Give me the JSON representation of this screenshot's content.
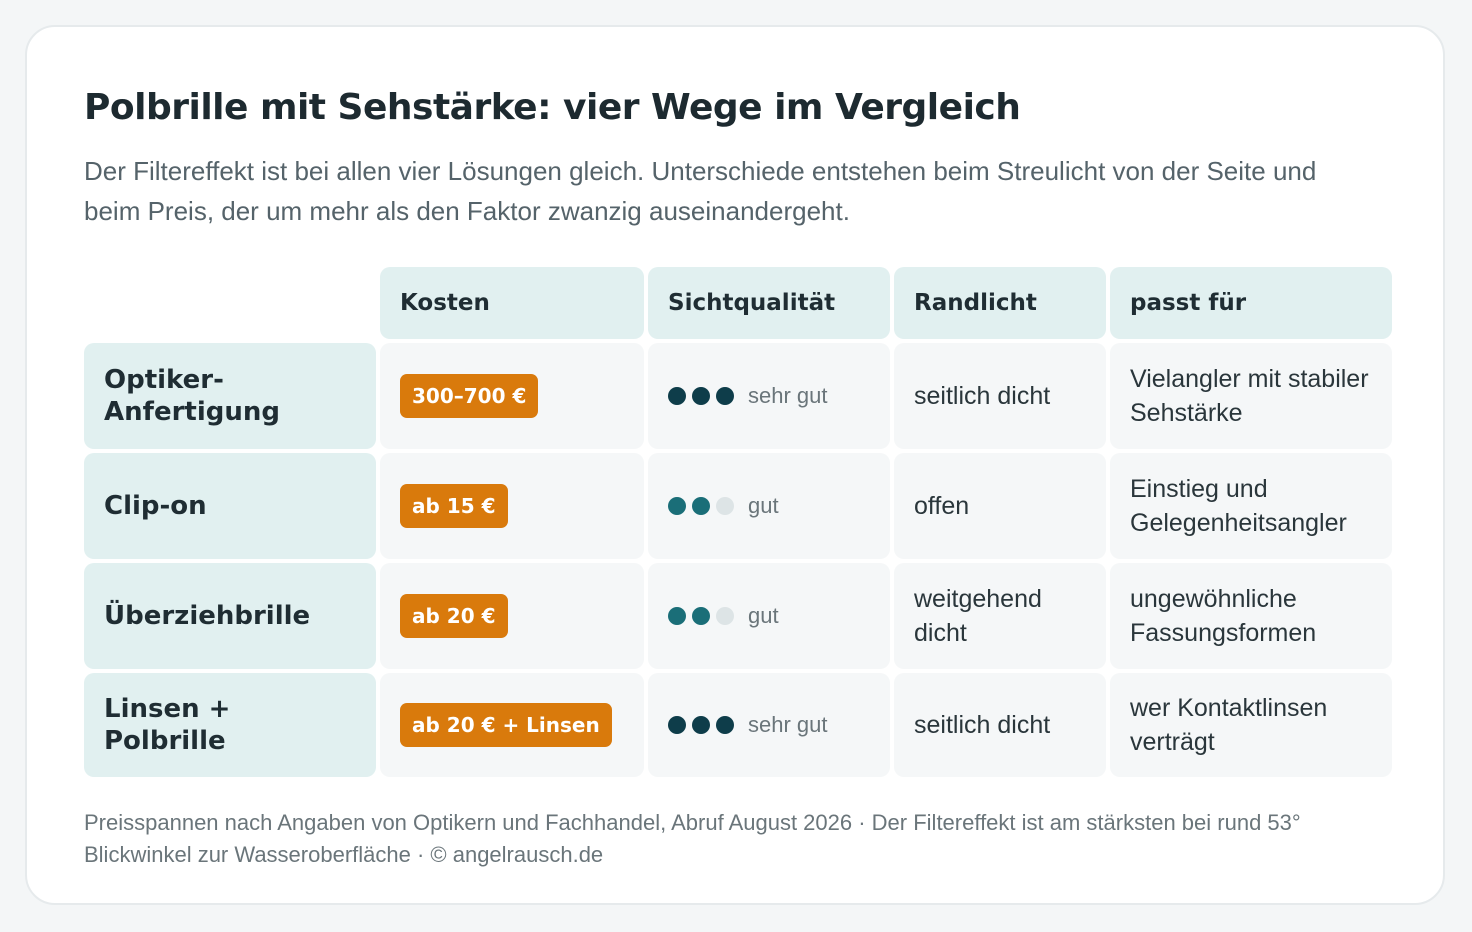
{
  "title": "Polbrille mit Sehstärke: vier Wege im Vergleich",
  "subtitle": "Der Filtereffekt ist bei allen vier Lösungen gleich. Unterschiede entstehen beim Streulicht von der Seite und beim Preis, der um mehr als den Faktor zwanzig auseinandergeht.",
  "columns": [
    "Kosten",
    "Sichtqualität",
    "Randlicht",
    "passt für"
  ],
  "rows": [
    {
      "label": "Optiker-\nAnfertigung",
      "price": "300–700 €",
      "quality_level": 3,
      "quality_text": "sehr gut",
      "randlicht": "seitlich dicht",
      "passt": "Vielangler mit stabiler Sehstärke"
    },
    {
      "label": "Clip-on",
      "price": "ab 15 €",
      "quality_level": 2,
      "quality_text": "gut",
      "randlicht": "offen",
      "passt": "Einstieg und Gelegenheitsangler"
    },
    {
      "label": "Überziehbrille",
      "price": "ab 20 €",
      "quality_level": 2,
      "quality_text": "gut",
      "randlicht": "weitgehend dicht",
      "passt": "ungewöhnliche Fassungsformen"
    },
    {
      "label": "Linsen + Polbrille",
      "price": "ab 20 € + Linsen",
      "quality_level": 3,
      "quality_text": "sehr gut",
      "randlicht": "seitlich dicht",
      "passt": "wer Kontaktlinsen verträgt"
    }
  ],
  "footnote": "Preisspannen nach Angaben von Optikern und Fachhandel, Abruf August 2026 · Der Filtereffekt ist am stärksten bei rund 53° Blickwinkel zur Wasseroberfläche · © angelrausch.de",
  "colors": {
    "accent_price": "#d97a0c",
    "dot_sehr_gut": "#0e3d4a",
    "dot_gut": "#1a6e78",
    "dot_empty": "#dde4e6",
    "header_bg": "#e1f0f0"
  }
}
